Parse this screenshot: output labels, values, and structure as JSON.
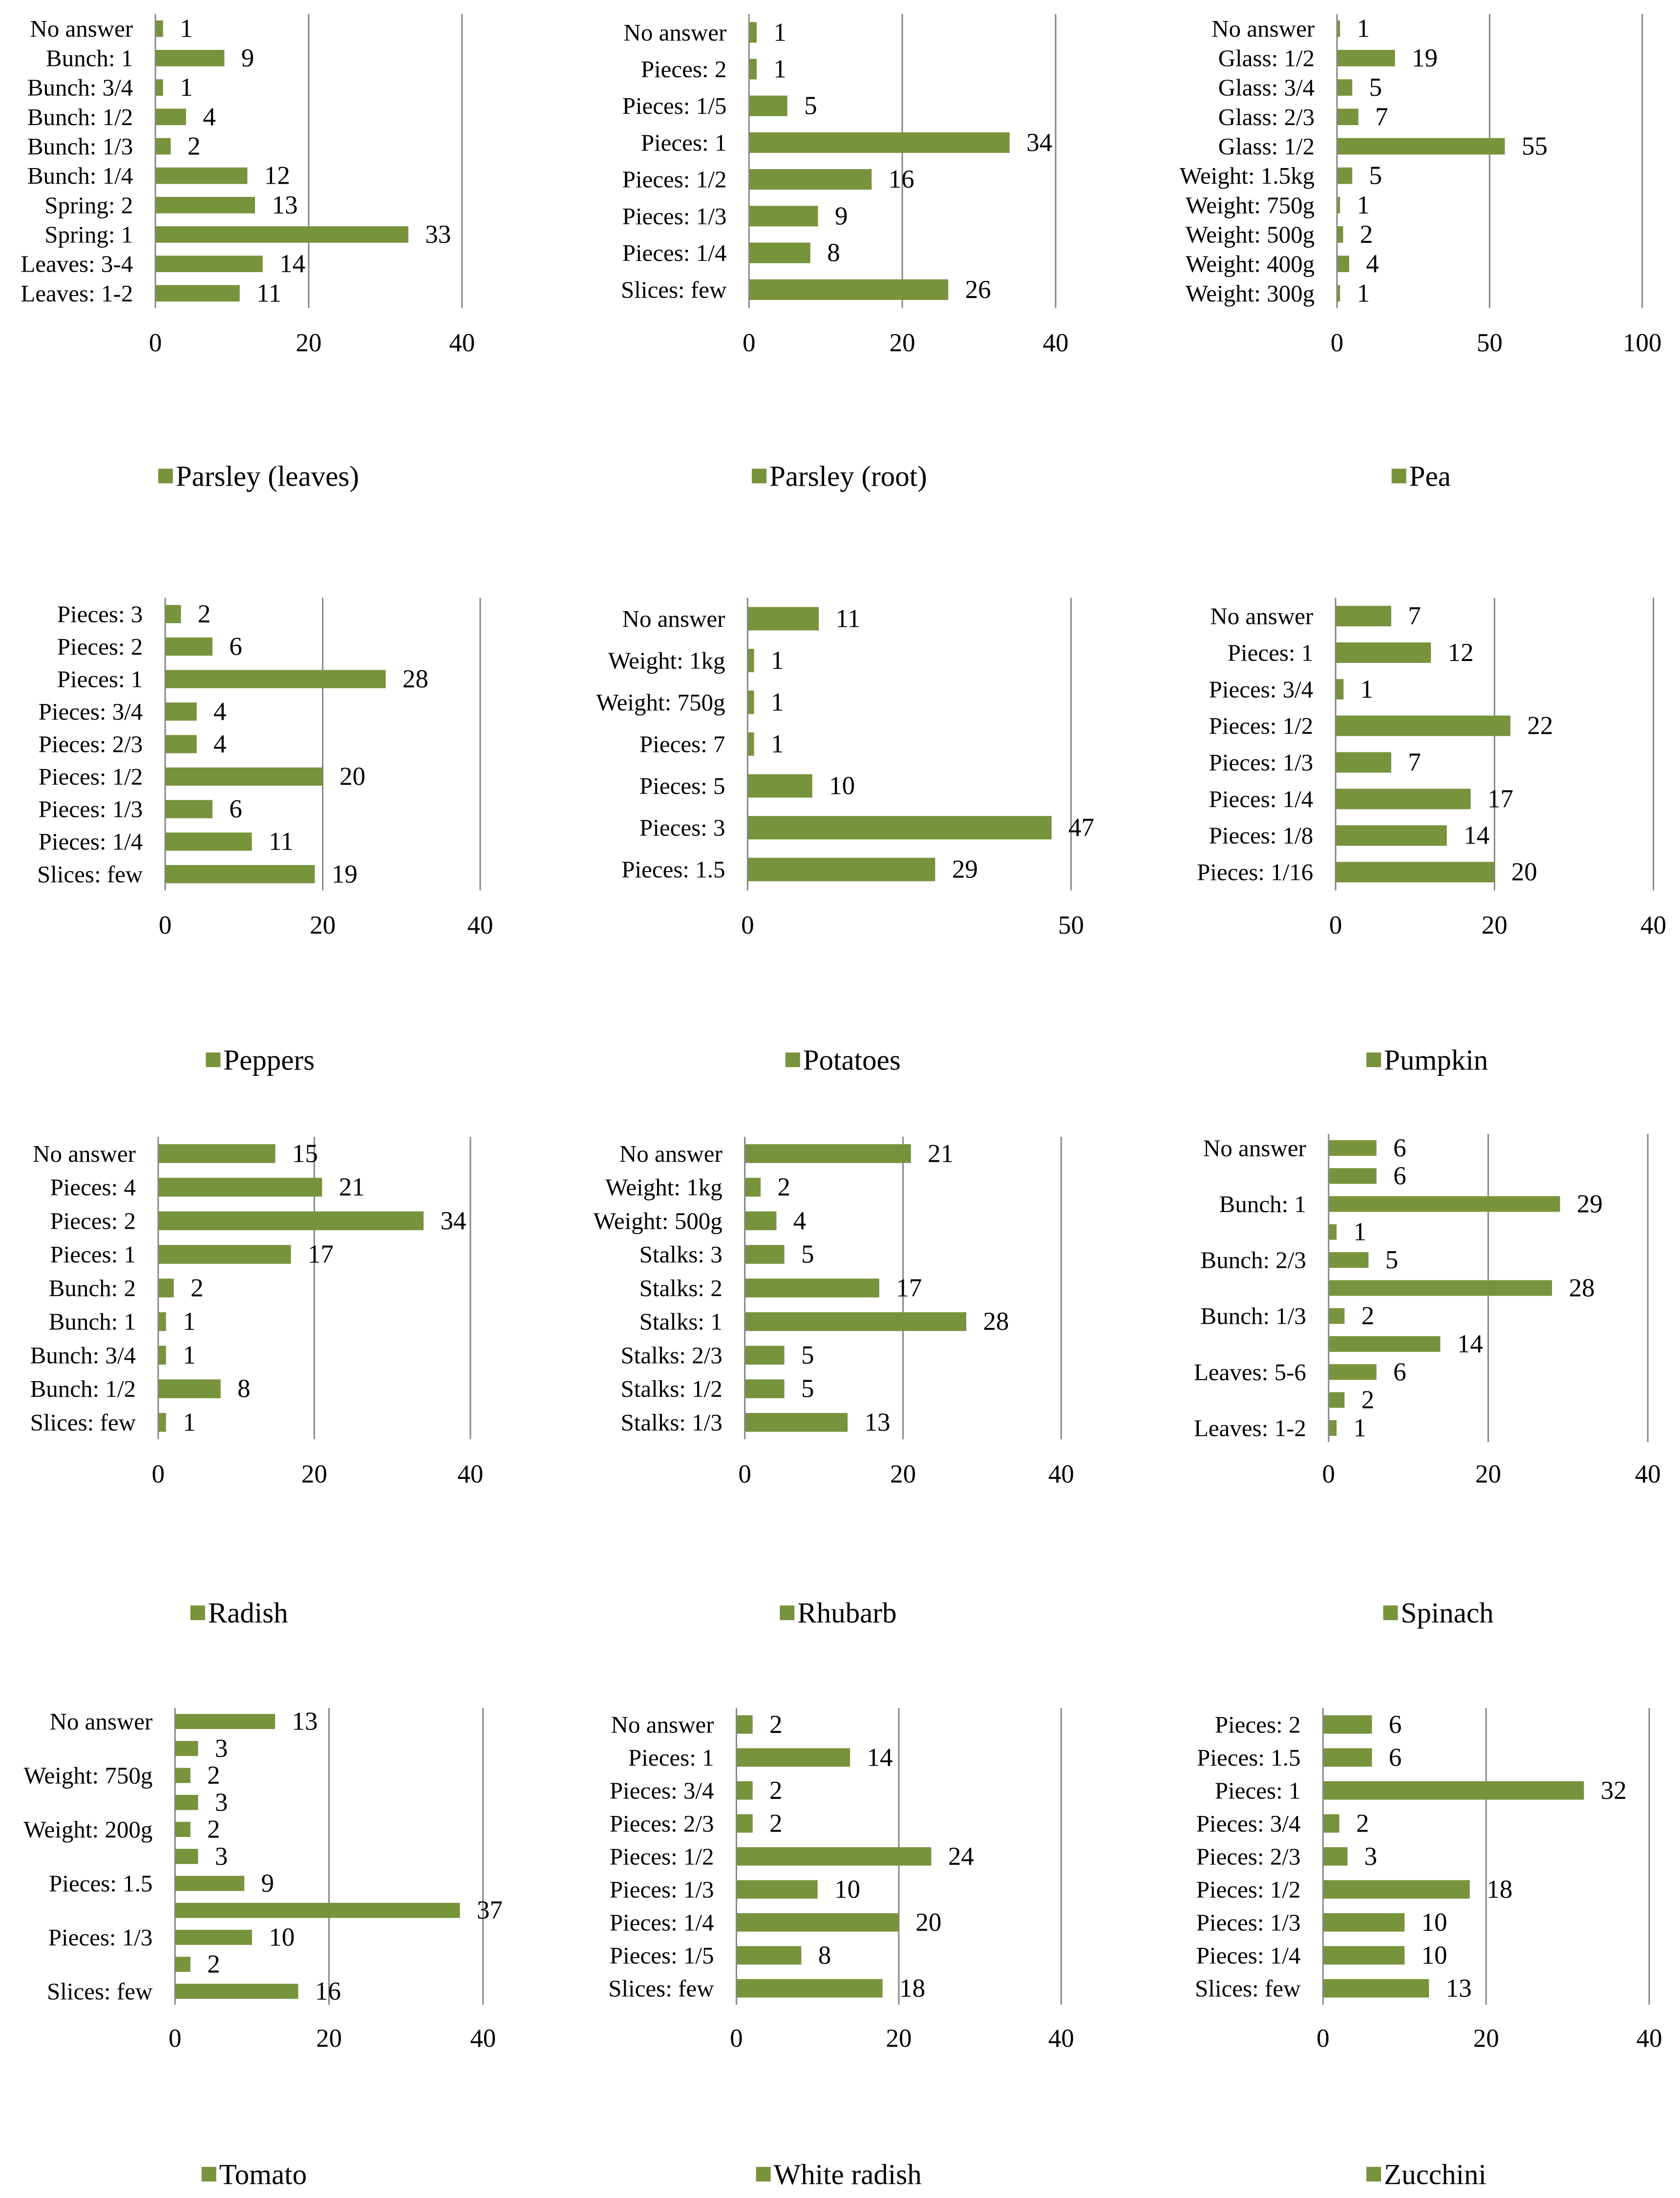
{
  "colors": {
    "bar": "#77933c",
    "grid": "#868686",
    "text": "#000000",
    "background": "#ffffff"
  },
  "chart_data": [
    {
      "type": "bar",
      "orientation": "horizontal",
      "series_name": "Parsley (leaves)",
      "categories": [
        "No answer",
        "Bunch: 1",
        "Bunch: 3/4",
        "Bunch: 1/2",
        "Bunch: 1/3",
        "Bunch: 1/4",
        "Spring: 2",
        "Spring: 1",
        "Leaves: 3-4",
        "Leaves: 1-2"
      ],
      "values": [
        1,
        9,
        1,
        4,
        2,
        12,
        13,
        33,
        14,
        11
      ],
      "xlim": [
        0,
        40
      ],
      "xticks": [
        0,
        20,
        40
      ],
      "legend_position": "bottom",
      "grid": true
    },
    {
      "type": "bar",
      "orientation": "horizontal",
      "series_name": "Parsley (root)",
      "categories": [
        "No answer",
        "Pieces: 2",
        "Pieces: 1/5",
        "Pieces: 1",
        "Pieces: 1/2",
        "Pieces: 1/3",
        "Pieces: 1/4",
        "Slices: few"
      ],
      "values": [
        1,
        1,
        5,
        34,
        16,
        9,
        8,
        26
      ],
      "xlim": [
        0,
        40
      ],
      "xticks": [
        0,
        20,
        40
      ],
      "legend_position": "bottom",
      "grid": true
    },
    {
      "type": "bar",
      "orientation": "horizontal",
      "series_name": "Pea",
      "categories": [
        "No answer",
        "Glass: 1/2",
        "Glass: 3/4",
        "Glass: 2/3",
        "Glass: 1/2",
        "Weight: 1.5kg",
        "Weight: 750g",
        "Weight: 500g",
        "Weight: 400g",
        "Weight: 300g"
      ],
      "values": [
        1,
        19,
        5,
        7,
        55,
        5,
        1,
        2,
        4,
        1
      ],
      "xlim": [
        0,
        100
      ],
      "xticks": [
        0,
        50,
        100
      ],
      "legend_position": "bottom",
      "grid": true
    },
    {
      "type": "bar",
      "orientation": "horizontal",
      "series_name": "Peppers",
      "categories": [
        "Pieces: 3",
        "Pieces: 2",
        "Pieces: 1",
        "Pieces: 3/4",
        "Pieces: 2/3",
        "Pieces: 1/2",
        "Pieces: 1/3",
        "Pieces: 1/4",
        "Slices: few"
      ],
      "values": [
        2,
        6,
        28,
        4,
        4,
        20,
        6,
        11,
        19
      ],
      "xlim": [
        0,
        40
      ],
      "xticks": [
        0,
        20,
        40
      ],
      "legend_position": "bottom",
      "grid": true
    },
    {
      "type": "bar",
      "orientation": "horizontal",
      "series_name": "Potatoes",
      "categories": [
        "No answer",
        "Weight: 1kg",
        "Weight: 750g",
        "Pieces: 7",
        "Pieces: 5",
        "Pieces: 3",
        "Pieces: 1.5"
      ],
      "values": [
        11,
        1,
        1,
        1,
        10,
        47,
        29
      ],
      "xlim": [
        0,
        50
      ],
      "xticks": [
        0,
        50
      ],
      "legend_position": "bottom",
      "grid": true
    },
    {
      "type": "bar",
      "orientation": "horizontal",
      "series_name": "Pumpkin",
      "categories": [
        "No answer",
        "Pieces: 1",
        "Pieces: 3/4",
        "Pieces: 1/2",
        "Pieces: 1/3",
        "Pieces: 1/4",
        "Pieces: 1/8",
        "Pieces: 1/16"
      ],
      "values": [
        7,
        12,
        1,
        22,
        7,
        17,
        14,
        20
      ],
      "xlim": [
        0,
        40
      ],
      "xticks": [
        0,
        20,
        40
      ],
      "legend_position": "bottom",
      "grid": true
    },
    {
      "type": "bar",
      "orientation": "horizontal",
      "series_name": "Radish",
      "categories": [
        "No answer",
        "Pieces: 4",
        "Pieces: 2",
        "Pieces: 1",
        "Bunch: 2",
        "Bunch: 1",
        "Bunch: 3/4",
        "Bunch: 1/2",
        "Slices: few"
      ],
      "values": [
        15,
        21,
        34,
        17,
        2,
        1,
        1,
        8,
        1
      ],
      "xlim": [
        0,
        40
      ],
      "xticks": [
        0,
        20,
        40
      ],
      "legend_position": "bottom",
      "grid": true
    },
    {
      "type": "bar",
      "orientation": "horizontal",
      "series_name": "Rhubarb",
      "categories": [
        "No answer",
        "Weight: 1kg",
        "Weight: 500g",
        "Stalks: 3",
        "Stalks: 2",
        "Stalks: 1",
        "Stalks: 2/3",
        "Stalks: 1/2",
        "Stalks: 1/3"
      ],
      "values": [
        21,
        2,
        4,
        5,
        17,
        28,
        5,
        5,
        13
      ],
      "xlim": [
        0,
        40
      ],
      "xticks": [
        0,
        20,
        40
      ],
      "legend_position": "bottom",
      "grid": true
    },
    {
      "type": "bar",
      "orientation": "horizontal",
      "series_name": "Spinach",
      "categories": [
        "No answer",
        "",
        "Bunch: 1",
        "",
        "Bunch: 2/3",
        "",
        "Bunch: 1/3",
        "",
        "Leaves: 5-6",
        "",
        "Leaves: 1-2"
      ],
      "values": [
        6,
        6,
        29,
        1,
        5,
        28,
        2,
        14,
        6,
        2,
        1
      ],
      "xlim": [
        0,
        40
      ],
      "xticks": [
        0,
        20,
        40
      ],
      "legend_position": "bottom",
      "grid": true
    },
    {
      "type": "bar",
      "orientation": "horizontal",
      "series_name": "Tomato",
      "categories": [
        "No answer",
        "",
        "Weight: 750g",
        "",
        "Weight: 200g",
        "",
        "Pieces: 1.5",
        "",
        "Pieces: 1/3",
        "",
        "Slices: few"
      ],
      "values": [
        13,
        3,
        2,
        3,
        2,
        3,
        9,
        37,
        10,
        2,
        16
      ],
      "xlim": [
        0,
        40
      ],
      "xticks": [
        0,
        20,
        40
      ],
      "legend_position": "bottom",
      "grid": true
    },
    {
      "type": "bar",
      "orientation": "horizontal",
      "series_name": "White radish",
      "categories": [
        "No answer",
        "Pieces: 1",
        "Pieces: 3/4",
        "Pieces: 2/3",
        "Pieces: 1/2",
        "Pieces: 1/3",
        "Pieces: 1/4",
        "Pieces: 1/5",
        "Slices: few"
      ],
      "values": [
        2,
        14,
        2,
        2,
        24,
        10,
        20,
        8,
        18
      ],
      "xlim": [
        0,
        40
      ],
      "xticks": [
        0,
        20,
        40
      ],
      "legend_position": "bottom",
      "grid": true
    },
    {
      "type": "bar",
      "orientation": "horizontal",
      "series_name": "Zucchini",
      "categories": [
        "Pieces: 2",
        "Pieces: 1.5",
        "Pieces: 1",
        "Pieces: 3/4",
        "Pieces: 2/3",
        "Pieces: 1/2",
        "Pieces: 1/3",
        "Pieces: 1/4",
        "Slices: few"
      ],
      "values": [
        6,
        6,
        32,
        2,
        3,
        18,
        10,
        10,
        13
      ],
      "xlim": [
        0,
        40
      ],
      "xticks": [
        0,
        20,
        40
      ],
      "legend_position": "bottom",
      "grid": true
    }
  ]
}
